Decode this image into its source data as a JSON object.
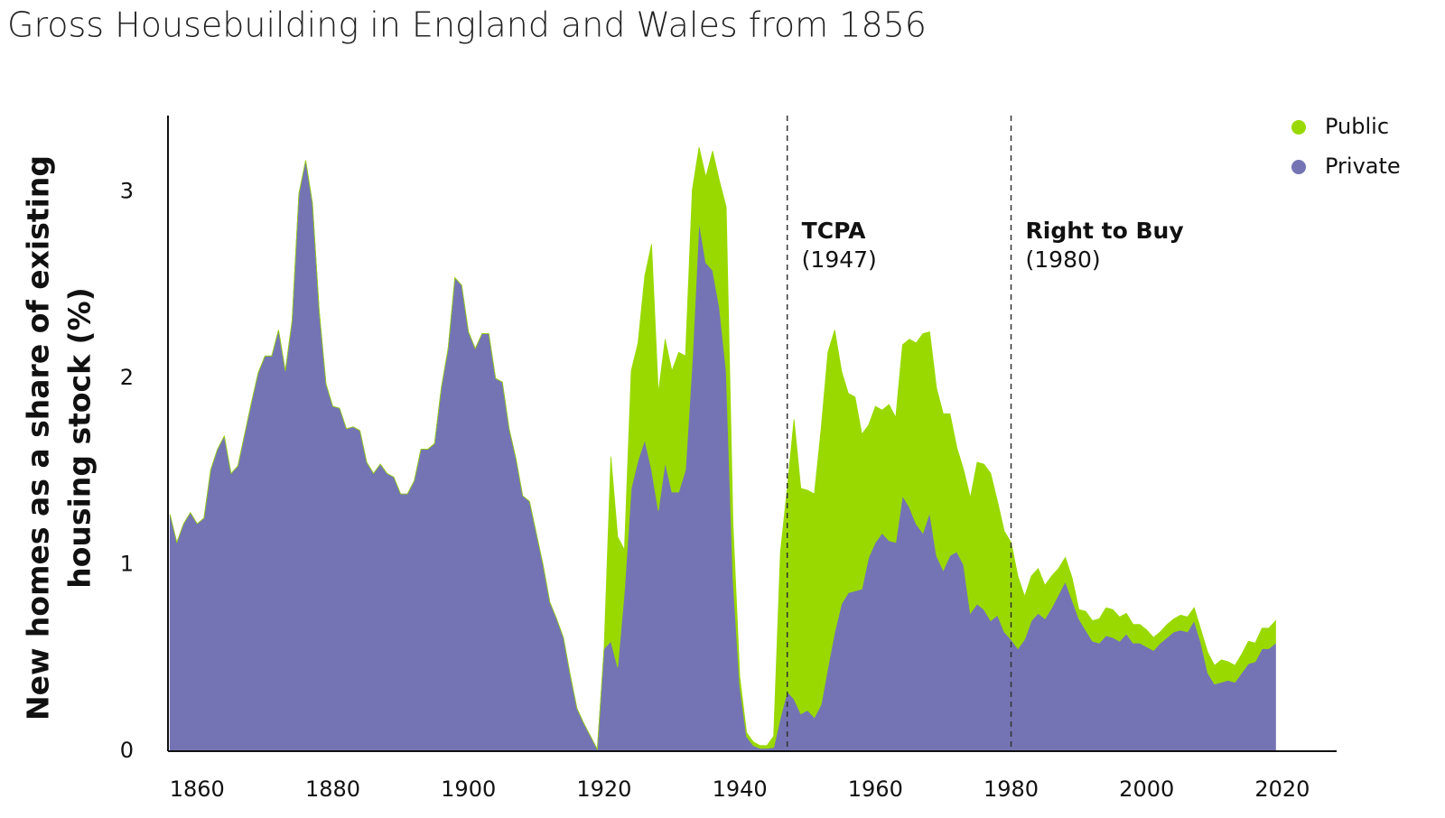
{
  "chart_data": {
    "type": "stacked_area",
    "title": "Gross Housebuilding in England and Wales from 1856",
    "ylabel": [
      "New homes as a share of existing",
      "housing stock (%)"
    ],
    "xlim": [
      1855.7,
      2028
    ],
    "ylim": [
      0,
      3.41
    ],
    "xticks": [
      1860,
      1880,
      1900,
      1920,
      1940,
      1960,
      1980,
      2000,
      2020
    ],
    "yticks": [
      0,
      1,
      2,
      3
    ],
    "grid": false,
    "legend": "upper right",
    "x": [
      1856,
      1857,
      1858,
      1859,
      1860,
      1861,
      1862,
      1863,
      1864,
      1865,
      1866,
      1867,
      1868,
      1869,
      1870,
      1871,
      1872,
      1873,
      1874,
      1875,
      1876,
      1877,
      1878,
      1879,
      1880,
      1881,
      1882,
      1883,
      1884,
      1885,
      1886,
      1887,
      1888,
      1889,
      1890,
      1891,
      1892,
      1893,
      1894,
      1895,
      1896,
      1897,
      1898,
      1899,
      1900,
      1901,
      1902,
      1903,
      1904,
      1905,
      1906,
      1907,
      1908,
      1909,
      1910,
      1911,
      1912,
      1913,
      1914,
      1915,
      1916,
      1917,
      1918,
      1919,
      1920,
      1921,
      1922,
      1923,
      1924,
      1925,
      1926,
      1927,
      1928,
      1929,
      1930,
      1931,
      1932,
      1933,
      1934,
      1935,
      1936,
      1937,
      1938,
      1939,
      1940,
      1941,
      1942,
      1943,
      1944,
      1945,
      1946,
      1947,
      1948,
      1949,
      1950,
      1951,
      1952,
      1953,
      1954,
      1955,
      1956,
      1957,
      1958,
      1959,
      1960,
      1961,
      1962,
      1963,
      1964,
      1965,
      1966,
      1967,
      1968,
      1969,
      1970,
      1971,
      1972,
      1973,
      1974,
      1975,
      1976,
      1977,
      1978,
      1979,
      1980,
      1981,
      1982,
      1983,
      1984,
      1985,
      1986,
      1987,
      1988,
      1989,
      1990,
      1991,
      1992,
      1993,
      1994,
      1995,
      1996,
      1997,
      1998,
      1999,
      2000,
      2001,
      2002,
      2003,
      2004,
      2005,
      2006,
      2007,
      2008,
      2009,
      2010,
      2011,
      2012,
      2013,
      2014,
      2015,
      2016,
      2017,
      2018,
      2019
    ],
    "series": [
      {
        "name": "Public",
        "color": "#99d900",
        "values": [
          0,
          0,
          0,
          0,
          0,
          0,
          0,
          0,
          0,
          0,
          0,
          0,
          0,
          0,
          0,
          0,
          0,
          0,
          0,
          0,
          0,
          0,
          0,
          0,
          0,
          0,
          0,
          0,
          0,
          0,
          0,
          0,
          0,
          0,
          0,
          0,
          0,
          0,
          0,
          0,
          0,
          0,
          0,
          0,
          0,
          0,
          0,
          0,
          0,
          0,
          0,
          0,
          0,
          0,
          0,
          0,
          0,
          0,
          0,
          0,
          0,
          0,
          0,
          0,
          0,
          0.99,
          0.7,
          0.22,
          0.63,
          0.63,
          0.88,
          1.21,
          0.63,
          0.66,
          0.65,
          0.75,
          0.61,
          0.92,
          0.4,
          0.46,
          0.64,
          0.68,
          0.88,
          0.29,
          0.05,
          0.02,
          0.02,
          0.015,
          0.015,
          0.06,
          0.89,
          1.09,
          1.5,
          1.21,
          1.18,
          1.2,
          1.48,
          1.69,
          1.62,
          1.25,
          1.07,
          1.04,
          0.83,
          0.71,
          0.73,
          0.66,
          0.73,
          0.67,
          0.81,
          0.9,
          0.97,
          1.07,
          0.97,
          0.9,
          0.84,
          0.76,
          0.56,
          0.51,
          0.62,
          0.76,
          0.78,
          0.79,
          0.61,
          0.54,
          0.52,
          0.39,
          0.23,
          0.24,
          0.24,
          0.18,
          0.17,
          0.14,
          0.13,
          0.12,
          0.05,
          0.1,
          0.11,
          0.13,
          0.15,
          0.15,
          0.13,
          0.11,
          0.1,
          0.1,
          0.09,
          0.07,
          0.06,
          0.07,
          0.07,
          0.08,
          0.08,
          0.07,
          0.07,
          0.11,
          0.1,
          0.12,
          0.1,
          0.09,
          0.1,
          0.12,
          0.1,
          0.11,
          0.11,
          0.12
        ]
      },
      {
        "name": "Private",
        "color": "#7474b4",
        "values": [
          1.27,
          1.12,
          1.22,
          1.28,
          1.22,
          1.25,
          1.51,
          1.62,
          1.69,
          1.49,
          1.53,
          1.7,
          1.87,
          2.03,
          2.12,
          2.12,
          2.26,
          2.04,
          2.31,
          2.99,
          3.17,
          2.94,
          2.36,
          1.97,
          1.85,
          1.84,
          1.73,
          1.74,
          1.72,
          1.55,
          1.49,
          1.54,
          1.49,
          1.47,
          1.38,
          1.38,
          1.45,
          1.62,
          1.62,
          1.65,
          1.95,
          2.16,
          2.54,
          2.5,
          2.25,
          2.16,
          2.24,
          2.24,
          2.0,
          1.98,
          1.73,
          1.57,
          1.37,
          1.34,
          1.17,
          1.0,
          0.8,
          0.71,
          0.61,
          0.41,
          0.23,
          0.15,
          0.08,
          0.01,
          0.55,
          0.59,
          0.45,
          0.86,
          1.41,
          1.56,
          1.67,
          1.51,
          1.29,
          1.55,
          1.39,
          1.39,
          1.51,
          2.09,
          2.84,
          2.62,
          2.58,
          2.38,
          2.04,
          0.93,
          0.35,
          0.08,
          0.03,
          0.015,
          0.015,
          0.02,
          0.18,
          0.32,
          0.28,
          0.2,
          0.22,
          0.18,
          0.25,
          0.45,
          0.64,
          0.79,
          0.85,
          0.86,
          0.87,
          1.04,
          1.12,
          1.17,
          1.13,
          1.12,
          1.37,
          1.31,
          1.22,
          1.17,
          1.28,
          1.05,
          0.97,
          1.05,
          1.07,
          1.0,
          0.74,
          0.79,
          0.76,
          0.7,
          0.73,
          0.64,
          0.6,
          0.55,
          0.6,
          0.7,
          0.74,
          0.71,
          0.77,
          0.84,
          0.91,
          0.81,
          0.71,
          0.65,
          0.59,
          0.58,
          0.62,
          0.61,
          0.59,
          0.63,
          0.58,
          0.58,
          0.56,
          0.54,
          0.58,
          0.61,
          0.64,
          0.65,
          0.64,
          0.7,
          0.58,
          0.42,
          0.36,
          0.37,
          0.38,
          0.37,
          0.42,
          0.47,
          0.48,
          0.55,
          0.55,
          0.58
        ]
      }
    ],
    "annotations": [
      {
        "x": 1947,
        "label": "TCPA",
        "sublabel": "(1947)"
      },
      {
        "x": 1980,
        "label": "Right to Buy",
        "sublabel": "(1980)"
      }
    ]
  }
}
